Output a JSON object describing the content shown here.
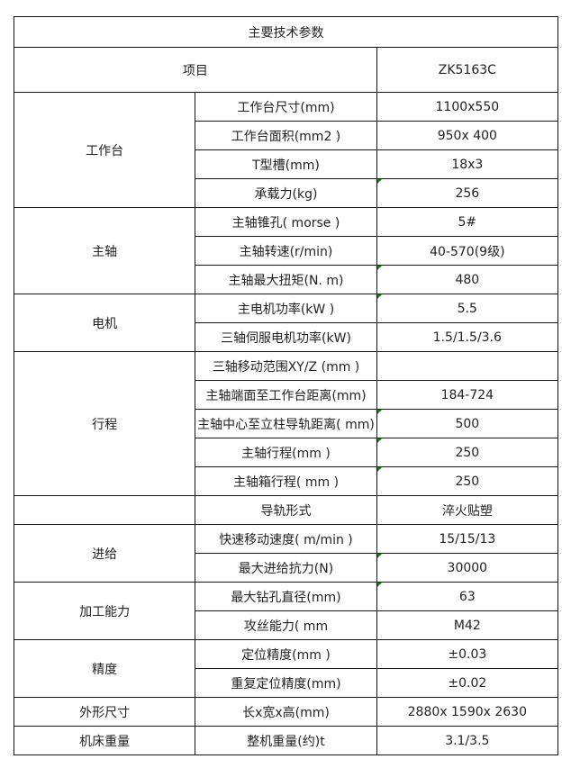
{
  "title": "主要技术参数",
  "header": {
    "item": "项目",
    "model": "ZK5163C"
  },
  "groups": [
    {
      "name": "工作台",
      "rows": [
        {
          "item": "工作台尺寸(mm)",
          "value": "1100x550"
        },
        {
          "item": "工作台面积(mm2 )",
          "value": "950x 400"
        },
        {
          "item": "T型槽(mm)",
          "value": "18x3"
        },
        {
          "item": "承载力(kg)",
          "value": "256",
          "flag": true
        }
      ]
    },
    {
      "name": "主轴",
      "rows": [
        {
          "item": "主轴锥孔( morse )",
          "value": "5#"
        },
        {
          "item": "主轴转速(r/min)",
          "value": "40-570(9级)"
        },
        {
          "item": "主轴最大扭矩(N. m)",
          "value": "480",
          "flag": true
        }
      ]
    },
    {
      "name": "电机",
      "rows": [
        {
          "item": "主电机功率(kW )",
          "value": "5.5",
          "flag": true
        },
        {
          "item": "三轴伺服电机功率(kW)",
          "value": "1.5/1.5/3.6"
        }
      ]
    },
    {
      "name": "行程",
      "rows": [
        {
          "item": "三轴移动范围XY/Z (mm )",
          "value": ""
        },
        {
          "item": "主轴端面至工作台距离(mm)",
          "value": "184-724"
        },
        {
          "item": "主轴中心至立柱导轨距离( mm)",
          "value": "500",
          "flag": true
        },
        {
          "item": "主轴行程(mm )",
          "value": "250",
          "flag": true
        },
        {
          "item": "主轴箱行程( mm )",
          "value": "250",
          "flag": true
        }
      ]
    },
    {
      "name": "",
      "rows": [
        {
          "item": "导轨形式",
          "value": "淬火贴塑"
        }
      ]
    },
    {
      "name": "进给",
      "rows": [
        {
          "item": "快速移动速度( m/min )",
          "value": "15/15/13"
        },
        {
          "item": "最大进给抗力(N)",
          "value": "30000",
          "flag": true
        }
      ]
    },
    {
      "name": "加工能力",
      "rows": [
        {
          "item": "最大钻孔直径(mm)",
          "value": "63",
          "flag": true
        },
        {
          "item": "攻丝能力( mm",
          "value": "M42"
        }
      ]
    },
    {
      "name": "精度",
      "rows": [
        {
          "item": "定位精度(mm )",
          "value": "±0.03"
        },
        {
          "item": "重复定位精度(mm)",
          "value": "±0.02"
        }
      ]
    },
    {
      "name": "外形尺寸",
      "rows": [
        {
          "item": "长x宽x高(mm)",
          "value": "2880x 1590x 2630"
        }
      ]
    },
    {
      "name": "机床重量",
      "rows": [
        {
          "item": "整机重量(约)t",
          "value": "3.1/3.5"
        }
      ]
    }
  ],
  "colors": {
    "border": "#111111",
    "flag": "#1f7a1f",
    "text": "#222222"
  }
}
